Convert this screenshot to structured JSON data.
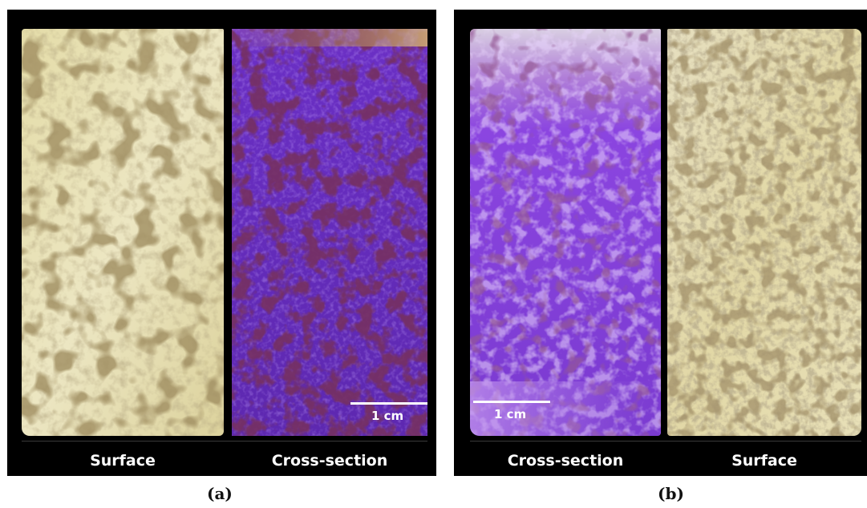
{
  "figure": {
    "panel_a": {
      "label": "(a)",
      "left_caption": "Surface",
      "right_caption": "Cross-section",
      "scale_bar": "1 cm"
    },
    "panel_b": {
      "label": "(b)",
      "left_caption": "Cross-section",
      "right_caption": "Surface",
      "scale_bar": "1 cm"
    }
  },
  "colors": {
    "background": "#000000",
    "surface_tone": "#e6dfb5",
    "cross_section_tone": "#6e2fc0",
    "caption_text": "#ffffff"
  }
}
